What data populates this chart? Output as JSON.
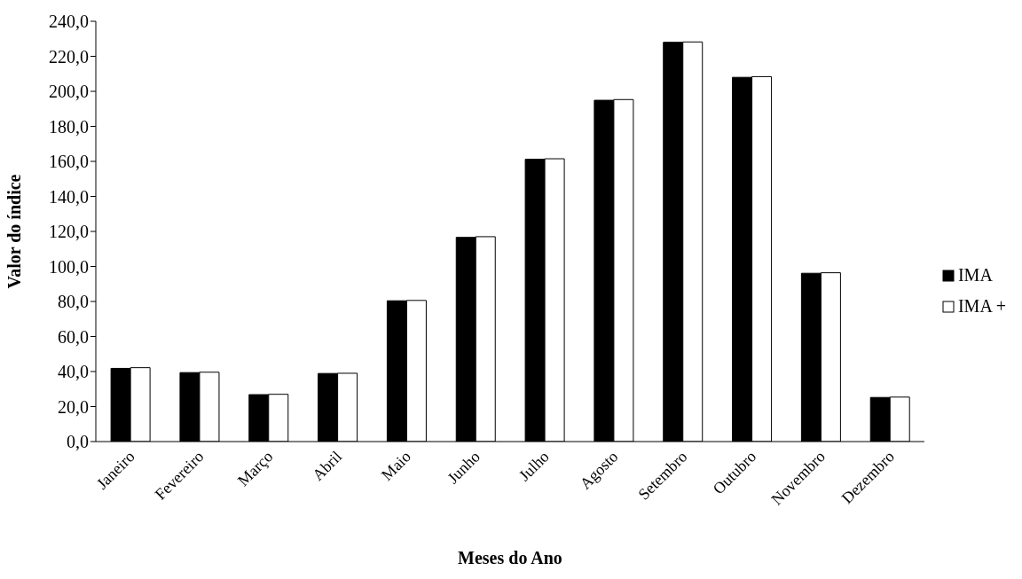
{
  "chart_data": {
    "type": "bar",
    "xlabel": "Meses do Ano",
    "ylabel": "Valor do índice",
    "categories": [
      "Janeiro",
      "Fevereiro",
      "Março",
      "Abril",
      "Maio",
      "Junho",
      "Julho",
      "Agosto",
      "Setembro",
      "Outubro",
      "Novembro",
      "Dezembro"
    ],
    "series": [
      {
        "name": "IMA",
        "color": "#000000",
        "values": [
          41.8,
          39.4,
          26.8,
          38.9,
          80.4,
          116.6,
          161.2,
          194.9,
          228.0,
          208.0,
          96.1,
          25.2
        ]
      },
      {
        "name": "IMA +",
        "color": "#ffffff",
        "values": [
          42.2,
          39.6,
          27.0,
          39.0,
          80.6,
          117.0,
          161.5,
          195.3,
          228.2,
          208.4,
          96.4,
          25.4
        ]
      }
    ],
    "ylim": [
      0,
      240
    ],
    "yticks": [
      {
        "value": 0,
        "label": "0,0"
      },
      {
        "value": 20,
        "label": "20,0"
      },
      {
        "value": 40,
        "label": "40,0"
      },
      {
        "value": 60,
        "label": "60,0"
      },
      {
        "value": 80,
        "label": "80,0"
      },
      {
        "value": 100,
        "label": "100,0"
      },
      {
        "value": 120,
        "label": "120,0"
      },
      {
        "value": 140,
        "label": "140,0"
      },
      {
        "value": 160,
        "label": "160,0"
      },
      {
        "value": 180,
        "label": "180,0"
      },
      {
        "value": 200,
        "label": "200,0"
      },
      {
        "value": 220,
        "label": "220,0"
      },
      {
        "value": 240,
        "label": "240,0"
      }
    ],
    "grid": false,
    "legend": "right"
  }
}
